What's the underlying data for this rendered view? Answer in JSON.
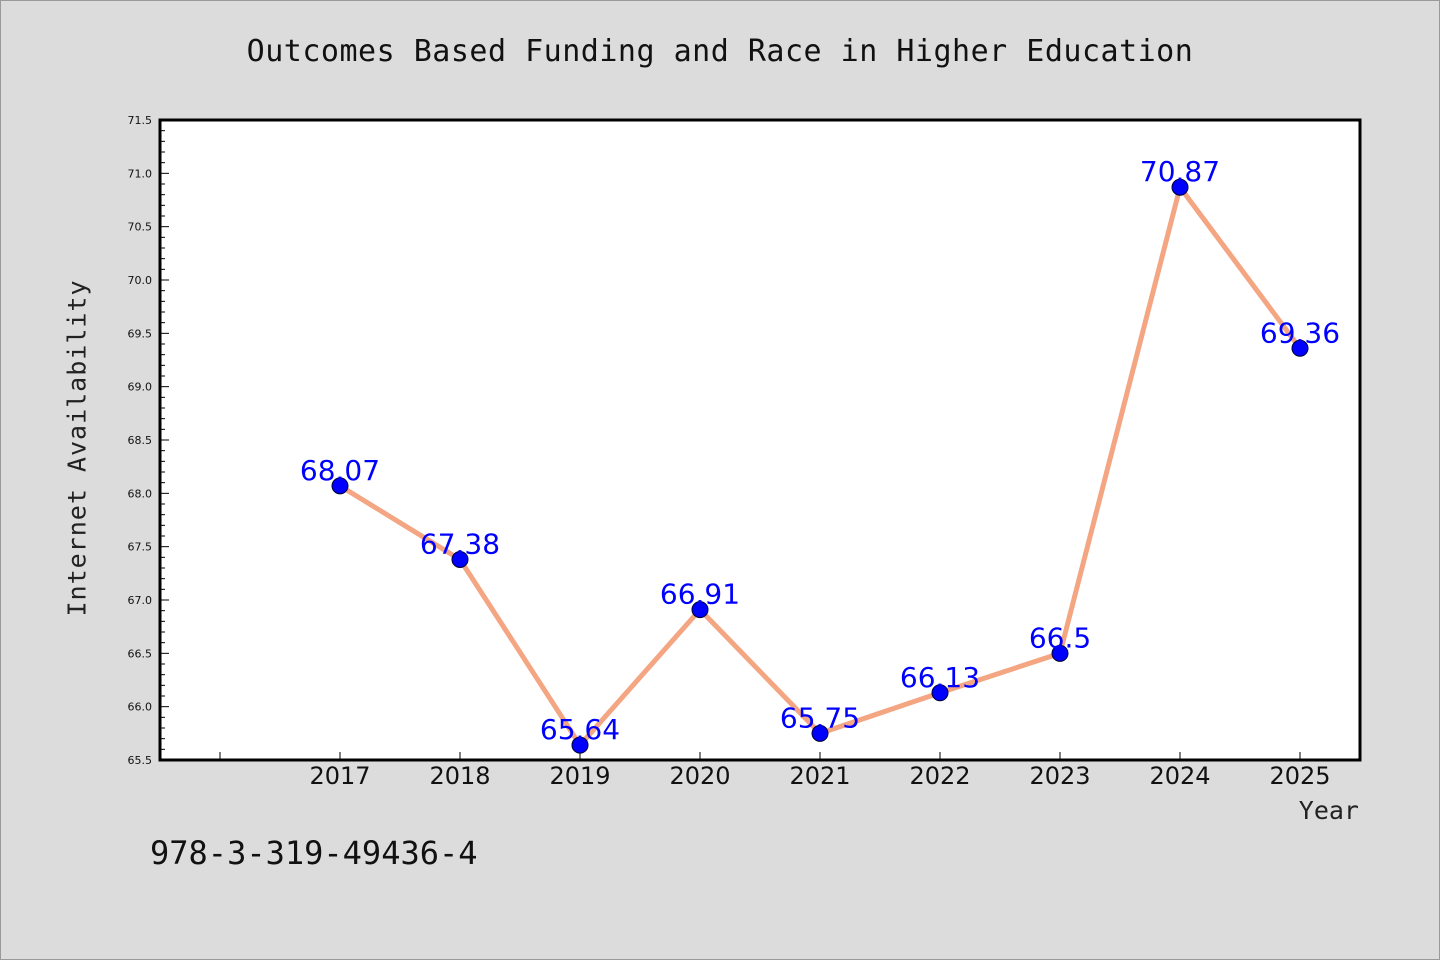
{
  "chart_data": {
    "type": "line",
    "title": "Outcomes Based Funding and Race in Higher Education",
    "xlabel": "Year",
    "ylabel": "Internet Availability",
    "x": [
      "2017",
      "2018",
      "2019",
      "2020",
      "2021",
      "2022",
      "2023",
      "2024",
      "2025"
    ],
    "series": [
      {
        "values": [
          68.07,
          67.38,
          65.64,
          66.91,
          65.75,
          66.13,
          66.5,
          70.87,
          69.36
        ],
        "labels": [
          "68.07",
          "67.38",
          "65.64",
          "66.91",
          "65.75",
          "66.13",
          "66.5",
          "70.87",
          "69.36"
        ],
        "line_color": "#f4a582",
        "marker_color": "#0000ff"
      }
    ],
    "ylim": [
      65.5,
      71.5
    ],
    "yticks": [
      "65.5",
      "66.0",
      "66.5",
      "67.0",
      "67.5",
      "68.0",
      "68.5",
      "69.0",
      "69.5",
      "70.0",
      "70.5",
      "71.0",
      "71.5"
    ],
    "grid": false,
    "label_color": "#0000ff"
  },
  "footer": {
    "isbn": "978-3-319-49436-4"
  },
  "colors": {
    "background": "#dcdcdc",
    "plot_background": "#ffffff"
  }
}
